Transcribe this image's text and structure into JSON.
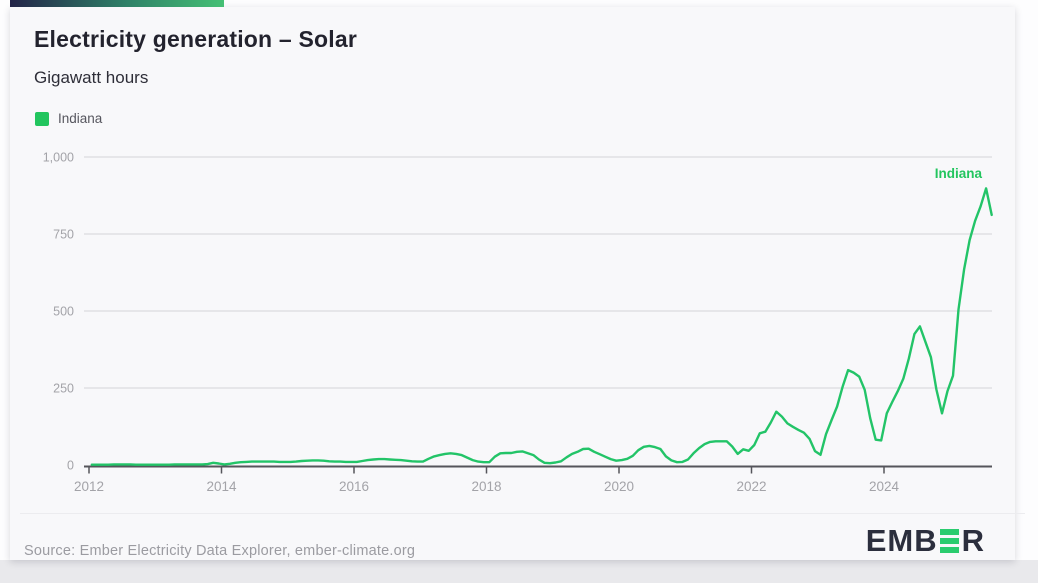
{
  "header": {
    "title": "Electricity generation – Solar",
    "subtitle": "Gigawatt hours"
  },
  "legend": {
    "items": [
      {
        "label": "Indiana",
        "color": "#22c55e"
      }
    ]
  },
  "annotation": {
    "line_end_label": "Indiana"
  },
  "footer": {
    "source": "Source: Ember Electricity Data Explorer, ember-climate.org",
    "logo_left": "EMB",
    "logo_right": "R"
  },
  "colors": {
    "line": "#23c468",
    "legend_swatch": "#22c55e",
    "gridline": "#dcdcdf",
    "axis": "#55555b",
    "tick_label": "#a3a3a8",
    "annotation": "#22c55e",
    "accent_gradient": [
      "#232448",
      "#2f8268",
      "#45c075"
    ]
  },
  "chart_data": {
    "type": "line",
    "title": "Electricity generation – Solar",
    "ylabel": "Gigawatt hours",
    "unit": "GWh",
    "frequency": "monthly",
    "x_range": [
      "2012-01",
      "2025-08"
    ],
    "ylim": [
      0,
      1000
    ],
    "y_ticks": [
      0,
      250,
      500,
      750,
      1000
    ],
    "y_tick_labels": [
      "0",
      "250",
      "500",
      "750",
      "1,000"
    ],
    "x_ticks": [
      2012,
      2014,
      2016,
      2018,
      2020,
      2022,
      2024
    ],
    "grid": "horizontal",
    "legend_position": "top-left",
    "series": [
      {
        "name": "Indiana",
        "color": "#23c468",
        "start": "2012-01",
        "values": [
          1,
          1,
          1,
          1,
          2,
          2,
          2,
          2,
          1,
          1,
          1,
          1,
          1,
          1,
          1,
          2,
          2,
          2,
          2,
          2,
          2,
          3,
          7,
          5,
          2,
          4,
          7,
          9,
          10,
          11,
          11,
          11,
          11,
          11,
          10,
          10,
          10,
          11,
          13,
          14,
          15,
          15,
          14,
          12,
          11,
          11,
          10,
          10,
          10,
          13,
          16,
          18,
          19,
          19,
          18,
          17,
          16,
          14,
          12,
          11,
          11,
          20,
          28,
          32,
          36,
          38,
          36,
          32,
          24,
          16,
          11,
          9,
          9,
          27,
          38,
          39,
          39,
          43,
          44,
          38,
          32,
          18,
          7,
          6,
          8,
          12,
          25,
          36,
          43,
          52,
          53,
          43,
          35,
          27,
          19,
          14,
          16,
          20,
          30,
          48,
          59,
          62,
          58,
          52,
          28,
          15,
          9,
          10,
          18,
          38,
          55,
          68,
          75,
          77,
          77,
          77,
          60,
          36,
          51,
          46,
          65,
          103,
          108,
          138,
          173,
          157,
          135,
          124,
          114,
          105,
          85,
          45,
          33,
          100,
          146,
          190,
          254,
          308,
          300,
          287,
          244,
          152,
          82,
          80,
          168,
          205,
          240,
          280,
          345,
          425,
          450,
          400,
          350,
          245,
          168,
          240,
          290,
          505,
          635,
          730,
          793,
          840,
          898,
          812
        ]
      }
    ]
  }
}
